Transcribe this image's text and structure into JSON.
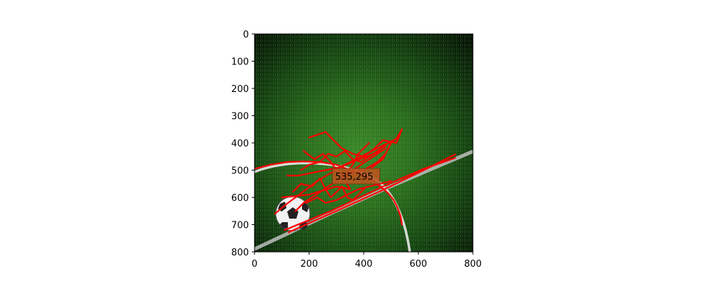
{
  "chart_data": {
    "type": "scatter",
    "title": "",
    "xlabel": "",
    "ylabel": "",
    "xlim": [
      0,
      800
    ],
    "ylim": [
      800,
      0
    ],
    "x_inverted": false,
    "y_inverted": true,
    "xticks": [
      0,
      200,
      400,
      600,
      800
    ],
    "yticks": [
      0,
      100,
      200,
      300,
      400,
      500,
      600,
      700,
      800
    ],
    "grid": false,
    "background_image": "soccer-field-with-ball",
    "line_color": "#ff0000",
    "annotation": {
      "text": "535,295",
      "x": 285,
      "y": 522,
      "box_color": "#b8561f"
    },
    "series": [
      {
        "points": [
          [
            0,
            495
          ],
          [
            60,
            480
          ],
          [
            120,
            470
          ],
          [
            180,
            468
          ],
          [
            240,
            470
          ],
          [
            300,
            480
          ],
          [
            350,
            500
          ],
          [
            400,
            520
          ],
          [
            440,
            545
          ],
          [
            470,
            568
          ],
          [
            490,
            585
          ],
          [
            510,
            610
          ],
          [
            525,
            640
          ],
          [
            535,
            670
          ],
          [
            540,
            700
          ]
        ]
      },
      {
        "points": [
          [
            125,
            728
          ],
          [
            300,
            650
          ],
          [
            480,
            568
          ],
          [
            620,
            500
          ],
          [
            735,
            442
          ]
        ]
      },
      {
        "points": [
          [
            110,
            720
          ],
          [
            280,
            650
          ],
          [
            470,
            560
          ],
          [
            620,
            495
          ],
          [
            735,
            455
          ]
        ]
      },
      {
        "points": [
          [
            75,
            660
          ],
          [
            110,
            630
          ],
          [
            150,
            600
          ],
          [
            190,
            570
          ],
          [
            230,
            540
          ],
          [
            280,
            510
          ],
          [
            330,
            480
          ],
          [
            380,
            455
          ],
          [
            430,
            430
          ],
          [
            480,
            405
          ],
          [
            520,
            385
          ],
          [
            540,
            350
          ]
        ]
      },
      {
        "points": [
          [
            100,
            600
          ],
          [
            200,
            590
          ],
          [
            300,
            560
          ],
          [
            350,
            570
          ],
          [
            320,
            520
          ],
          [
            400,
            500
          ],
          [
            450,
            470
          ],
          [
            480,
            440
          ],
          [
            500,
            400
          ],
          [
            490,
            420
          ],
          [
            470,
            460
          ],
          [
            430,
            490
          ]
        ]
      },
      {
        "points": [
          [
            200,
            380
          ],
          [
            260,
            360
          ],
          [
            290,
            390
          ],
          [
            320,
            420
          ],
          [
            360,
            440
          ],
          [
            400,
            450
          ],
          [
            440,
            420
          ],
          [
            470,
            390
          ],
          [
            520,
            400
          ],
          [
            540,
            350
          ]
        ]
      },
      {
        "points": [
          [
            180,
            430
          ],
          [
            220,
            460
          ],
          [
            250,
            440
          ],
          [
            280,
            470
          ],
          [
            300,
            500
          ],
          [
            330,
            520
          ],
          [
            360,
            480
          ],
          [
            380,
            440
          ],
          [
            400,
            420
          ],
          [
            420,
            400
          ]
        ]
      },
      {
        "points": [
          [
            140,
            580
          ],
          [
            170,
            550
          ],
          [
            210,
            560
          ],
          [
            240,
            530
          ],
          [
            260,
            570
          ],
          [
            280,
            600
          ],
          [
            300,
            580
          ],
          [
            320,
            560
          ],
          [
            340,
            600
          ],
          [
            360,
            610
          ],
          [
            390,
            580
          ],
          [
            410,
            560
          ]
        ]
      },
      {
        "points": [
          [
            170,
            500
          ],
          [
            200,
            480
          ],
          [
            240,
            470
          ],
          [
            270,
            440
          ],
          [
            300,
            450
          ],
          [
            330,
            430
          ],
          [
            360,
            460
          ],
          [
            390,
            470
          ],
          [
            420,
            450
          ],
          [
            450,
            430
          ],
          [
            480,
            410
          ]
        ]
      },
      {
        "points": [
          [
            120,
            520
          ],
          [
            160,
            520
          ],
          [
            210,
            510
          ],
          [
            260,
            500
          ],
          [
            310,
            490
          ],
          [
            360,
            470
          ],
          [
            410,
            450
          ],
          [
            460,
            430
          ]
        ]
      },
      {
        "points": [
          [
            190,
            620
          ],
          [
            230,
            600
          ],
          [
            260,
            620
          ],
          [
            300,
            610
          ],
          [
            340,
            590
          ],
          [
            380,
            570
          ],
          [
            420,
            560
          ],
          [
            460,
            550
          ],
          [
            500,
            540
          ]
        ]
      },
      {
        "points": [
          [
            150,
            650
          ],
          [
            180,
            620
          ],
          [
            210,
            600
          ],
          [
            240,
            580
          ],
          [
            270,
            560
          ],
          [
            300,
            540
          ],
          [
            330,
            520
          ],
          [
            360,
            500
          ],
          [
            390,
            480
          ],
          [
            420,
            460
          ],
          [
            450,
            440
          ],
          [
            480,
            420
          ]
        ]
      }
    ]
  }
}
